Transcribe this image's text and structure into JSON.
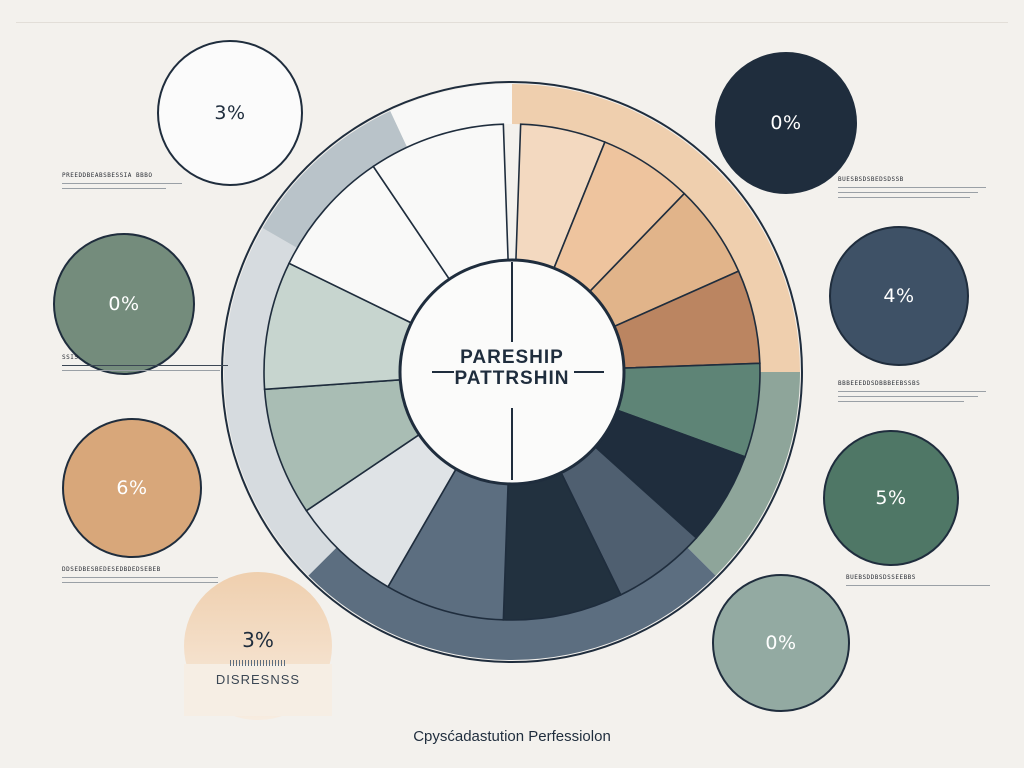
{
  "center": {
    "line1": "PARESHIP",
    "line2": "PATTRSHIN"
  },
  "bubbles": [
    {
      "id": "top-left",
      "value": "3%",
      "fill": "#fbfbfb",
      "text_color": "#1f2d3d"
    },
    {
      "id": "mid-left",
      "value": "0%",
      "fill": "#748c7c",
      "text_color": "#ffffff"
    },
    {
      "id": "low-left",
      "value": "6%",
      "fill": "#d8a77a",
      "text_color": "#ffffff"
    },
    {
      "id": "bottom-left",
      "value": "3%",
      "fill": "#efcfae",
      "text_color": "#1f2d3d"
    },
    {
      "id": "top-right",
      "value": "0%",
      "fill": "#1f2d3d",
      "text_color": "#ffffff"
    },
    {
      "id": "mid-right",
      "value": "4%",
      "fill": "#3e5166",
      "text_color": "#ffffff"
    },
    {
      "id": "low-right",
      "value": "5%",
      "fill": "#4f7766",
      "text_color": "#ffffff"
    },
    {
      "id": "bottom-right",
      "value": "0%",
      "fill": "#93aaa2",
      "text_color": "#ffffff"
    }
  ],
  "legends": [
    {
      "id": "left-1",
      "title": "PREEDDBEABSBESSIA BBBO"
    },
    {
      "id": "left-2",
      "title": "SSIS"
    },
    {
      "id": "left-3",
      "title": "DDSEDBESBEDESEDBDEDSEBEB"
    },
    {
      "id": "right-1",
      "title": "BUESBSDSBEDSDSSB"
    },
    {
      "id": "right-2",
      "title": "BBBEEEDDSDBBBEEBSSBS"
    },
    {
      "id": "right-3",
      "title": "BUEBSDDBSDSSEEBBS"
    }
  ],
  "bottom_card": {
    "value": "3%",
    "label": "DISRESNSS"
  },
  "footer": {
    "text": "Cpysćadastution Perfessiolon"
  },
  "colors": {
    "navy": "#1f2d3d",
    "slate": "#5c6e80",
    "sage": "#a9bdb4",
    "teal": "#4f7766",
    "peach": "#efcfae",
    "terracotta": "#bb8561",
    "background": "#f3f1ed"
  }
}
